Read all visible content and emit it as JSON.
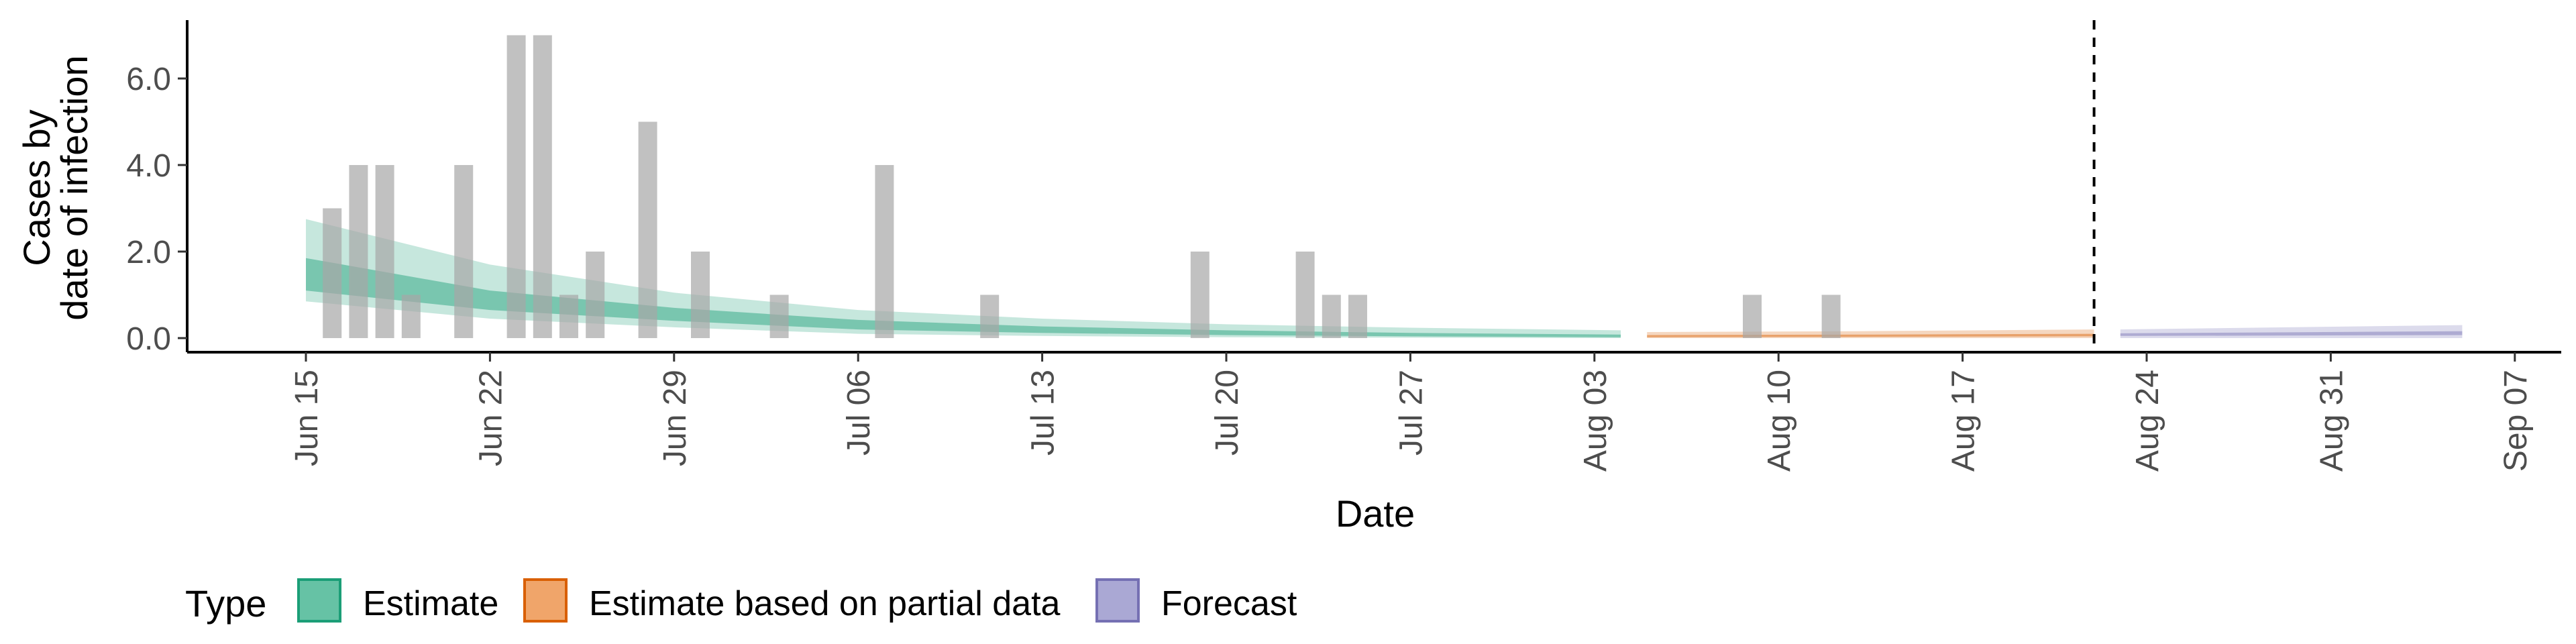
{
  "chart_data": {
    "type": "area",
    "xlabel": "Date",
    "ylabel_lines": [
      "Cases by",
      "date of infection"
    ],
    "xlim": [
      "2021-06-15",
      "2021-09-07"
    ],
    "ylim": [
      0,
      7.2
    ],
    "y_ticks": [
      0,
      2,
      4,
      6
    ],
    "y_tick_labels": [
      "0.0",
      "2.0",
      "4.0",
      "6.0"
    ],
    "x_ticks": [
      "2021-06-15",
      "2021-06-22",
      "2021-06-29",
      "2021-07-06",
      "2021-07-13",
      "2021-07-20",
      "2021-07-27",
      "2021-08-03",
      "2021-08-10",
      "2021-08-17",
      "2021-08-24",
      "2021-08-31",
      "2021-09-07"
    ],
    "x_tick_labels": [
      "Jun 15",
      "Jun 22",
      "Jun 29",
      "Jul 06",
      "Jul 13",
      "Jul 20",
      "Jul 27",
      "Aug 03",
      "Aug 10",
      "Aug 17",
      "Aug 24",
      "Aug 31",
      "Sep 07"
    ],
    "forecast_line_date": "2021-08-22",
    "grid": false,
    "legend": {
      "title": "Type",
      "position": "bottom",
      "items": [
        {
          "label": "Estimate",
          "fill": "#66c2a5",
          "border": "#1b9e77"
        },
        {
          "label": "Estimate based on partial data",
          "fill": "#f0a56a",
          "border": "#d95f02"
        },
        {
          "label": "Forecast",
          "fill": "#aaa8d4",
          "border": "#7570b3"
        }
      ]
    },
    "observed_cases": [
      {
        "date": "2021-06-16",
        "value": 3
      },
      {
        "date": "2021-06-17",
        "value": 4
      },
      {
        "date": "2021-06-18",
        "value": 4
      },
      {
        "date": "2021-06-19",
        "value": 1
      },
      {
        "date": "2021-06-21",
        "value": 4
      },
      {
        "date": "2021-06-23",
        "value": 7
      },
      {
        "date": "2021-06-24",
        "value": 7
      },
      {
        "date": "2021-06-25",
        "value": 1
      },
      {
        "date": "2021-06-26",
        "value": 2
      },
      {
        "date": "2021-06-28",
        "value": 5
      },
      {
        "date": "2021-06-30",
        "value": 2
      },
      {
        "date": "2021-07-03",
        "value": 1
      },
      {
        "date": "2021-07-07",
        "value": 4
      },
      {
        "date": "2021-07-11",
        "value": 1
      },
      {
        "date": "2021-07-19",
        "value": 2
      },
      {
        "date": "2021-07-23",
        "value": 2
      },
      {
        "date": "2021-07-24",
        "value": 1
      },
      {
        "date": "2021-07-25",
        "value": 1
      },
      {
        "date": "2021-08-09",
        "value": 1
      },
      {
        "date": "2021-08-12",
        "value": 1
      }
    ],
    "series": [
      {
        "type": "Estimate",
        "color": "#1b9e77",
        "points": [
          {
            "date": "2021-06-15",
            "outer": [
              0.85,
              2.75
            ],
            "inner": [
              1.1,
              1.85
            ]
          },
          {
            "date": "2021-06-22",
            "outer": [
              0.45,
              1.7
            ],
            "inner": [
              0.65,
              1.1
            ]
          },
          {
            "date": "2021-06-29",
            "outer": [
              0.25,
              1.05
            ],
            "inner": [
              0.4,
              0.7
            ]
          },
          {
            "date": "2021-07-06",
            "outer": [
              0.1,
              0.65
            ],
            "inner": [
              0.2,
              0.42
            ]
          },
          {
            "date": "2021-07-13",
            "outer": [
              0.05,
              0.45
            ],
            "inner": [
              0.12,
              0.27
            ]
          },
          {
            "date": "2021-07-20",
            "outer": [
              0.02,
              0.32
            ],
            "inner": [
              0.07,
              0.18
            ]
          },
          {
            "date": "2021-07-27",
            "outer": [
              0.01,
              0.24
            ],
            "inner": [
              0.04,
              0.12
            ]
          },
          {
            "date": "2021-08-04",
            "outer": [
              0.0,
              0.18
            ],
            "inner": [
              0.02,
              0.08
            ]
          }
        ]
      },
      {
        "type": "Estimate based on partial data",
        "color": "#d95f02",
        "points": [
          {
            "date": "2021-08-05",
            "outer": [
              0.0,
              0.14
            ],
            "inner": [
              0.02,
              0.07
            ]
          },
          {
            "date": "2021-08-13",
            "outer": [
              0.0,
              0.16
            ],
            "inner": [
              0.03,
              0.08
            ]
          },
          {
            "date": "2021-08-22",
            "outer": [
              0.0,
              0.2
            ],
            "inner": [
              0.04,
              0.1
            ]
          }
        ]
      },
      {
        "type": "Forecast",
        "color": "#7570b3",
        "points": [
          {
            "date": "2021-08-23",
            "outer": [
              0.0,
              0.2
            ],
            "inner": [
              0.05,
              0.11
            ]
          },
          {
            "date": "2021-09-05",
            "outer": [
              0.0,
              0.3
            ],
            "inner": [
              0.07,
              0.16
            ]
          }
        ]
      }
    ]
  }
}
